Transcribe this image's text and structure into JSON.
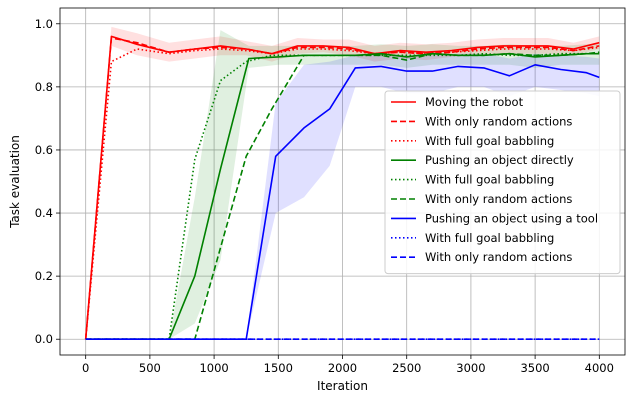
{
  "chart_data": {
    "type": "line",
    "xlabel": "Iteration",
    "ylabel": "Task evaluation",
    "xlim": [
      -200,
      4200
    ],
    "ylim": [
      -0.05,
      1.05
    ],
    "x_ticks": [
      0,
      500,
      1000,
      1500,
      2000,
      2500,
      3000,
      3500,
      4000
    ],
    "y_ticks": [
      0.0,
      0.2,
      0.4,
      0.6,
      0.8,
      1.0
    ],
    "x_tick_labels": [
      "0",
      "500",
      "1000",
      "1500",
      "2000",
      "2500",
      "3000",
      "3500",
      "4000"
    ],
    "y_tick_labels": [
      "0.0",
      "0.2",
      "0.4",
      "0.6",
      "0.8",
      "1.0"
    ],
    "grid": true,
    "legend_position": "right",
    "series": [
      {
        "name": "Moving the robot",
        "color": "#ff0000",
        "style": "solid",
        "x": [
          0,
          200,
          400,
          650,
          850,
          1050,
          1250,
          1450,
          1650,
          1850,
          2050,
          2250,
          2450,
          2650,
          2850,
          3050,
          3250,
          3400,
          3600,
          3800,
          4000
        ],
        "y": [
          0.0,
          0.96,
          0.935,
          0.91,
          0.92,
          0.93,
          0.92,
          0.905,
          0.93,
          0.93,
          0.925,
          0.905,
          0.915,
          0.91,
          0.915,
          0.925,
          0.93,
          0.93,
          0.93,
          0.92,
          0.94
        ],
        "band_lower": [
          0.0,
          0.93,
          0.9,
          0.88,
          0.89,
          0.9,
          0.9,
          0.88,
          0.905,
          0.91,
          0.9,
          0.88,
          0.89,
          0.885,
          0.895,
          0.9,
          0.905,
          0.905,
          0.905,
          0.9,
          0.92
        ],
        "band_upper": [
          0.0,
          0.99,
          0.97,
          0.94,
          0.95,
          0.96,
          0.945,
          0.93,
          0.955,
          0.95,
          0.95,
          0.93,
          0.94,
          0.935,
          0.94,
          0.95,
          0.955,
          0.955,
          0.955,
          0.94,
          0.96
        ]
      },
      {
        "name": "With only random actions",
        "color": "#ff0000",
        "style": "dashed",
        "x": [
          0,
          200,
          400,
          650,
          850,
          1050,
          1250,
          1450,
          1650,
          1850,
          2050,
          2250,
          2450,
          2650,
          2850,
          3050,
          3250,
          3400,
          3600,
          3800,
          4000
        ],
        "y": [
          0.0,
          0.955,
          0.94,
          0.91,
          0.92,
          0.925,
          0.92,
          0.905,
          0.925,
          0.925,
          0.92,
          0.905,
          0.91,
          0.905,
          0.91,
          0.92,
          0.925,
          0.925,
          0.925,
          0.915,
          0.93
        ]
      },
      {
        "name": "With full goal babbling",
        "color": "#ff0000",
        "style": "dotted",
        "x": [
          0,
          200,
          400,
          650,
          850,
          1050,
          1250,
          1450,
          1650,
          1850,
          2050,
          2250,
          2450,
          2650,
          2850,
          3050,
          3250,
          3400,
          3600,
          3800,
          4000
        ],
        "y": [
          0.0,
          0.88,
          0.92,
          0.905,
          0.915,
          0.92,
          0.915,
          0.905,
          0.92,
          0.92,
          0.915,
          0.905,
          0.91,
          0.905,
          0.91,
          0.915,
          0.92,
          0.92,
          0.92,
          0.915,
          0.925
        ]
      },
      {
        "name": "Pushing an object directly",
        "color": "#008000",
        "style": "solid",
        "x": [
          0,
          400,
          650,
          850,
          1050,
          1270,
          1500,
          1700,
          2100,
          2300,
          2500,
          2700,
          2900,
          3100,
          3300,
          3500,
          3700,
          3900,
          4000
        ],
        "y": [
          0.0,
          0.0,
          0.0,
          0.2,
          0.54,
          0.89,
          0.895,
          0.9,
          0.9,
          0.905,
          0.895,
          0.905,
          0.9,
          0.9,
          0.905,
          0.895,
          0.9,
          0.905,
          0.905
        ],
        "band_lower": [
          0.0,
          0.0,
          0.0,
          0.05,
          0.25,
          0.86,
          0.87,
          0.87,
          0.87,
          0.87,
          0.86,
          0.87,
          0.87,
          0.87,
          0.87,
          0.86,
          0.87,
          0.87,
          0.87
        ],
        "band_upper": [
          0.0,
          0.0,
          0.0,
          0.45,
          0.98,
          0.93,
          0.93,
          0.93,
          0.93,
          0.935,
          0.93,
          0.935,
          0.93,
          0.93,
          0.935,
          0.93,
          0.93,
          0.935,
          0.935
        ]
      },
      {
        "name": "With full goal babbling",
        "color": "#008000",
        "style": "dotted",
        "x": [
          0,
          400,
          650,
          850,
          1050,
          1250,
          1450,
          1650,
          1850,
          2050,
          2300,
          2500,
          2700,
          2900,
          3100,
          3300,
          3500,
          3700,
          3900,
          4000
        ],
        "y": [
          0.0,
          0.0,
          0.0,
          0.57,
          0.82,
          0.88,
          0.9,
          0.9,
          0.9,
          0.9,
          0.9,
          0.9,
          0.9,
          0.9,
          0.905,
          0.9,
          0.9,
          0.905,
          0.905,
          0.905
        ]
      },
      {
        "name": "With only random actions",
        "color": "#008000",
        "style": "dashed",
        "x": [
          0,
          400,
          850,
          1250,
          1450,
          1700,
          2100,
          2300,
          2500,
          2700,
          2900,
          3100,
          3300,
          3500,
          3700,
          3900,
          4000
        ],
        "y": [
          0.0,
          0.0,
          0.0,
          0.58,
          0.73,
          0.9,
          0.9,
          0.9,
          0.885,
          0.905,
          0.9,
          0.9,
          0.905,
          0.9,
          0.9,
          0.905,
          0.91
        ]
      },
      {
        "name": "Pushing an object using a tool",
        "color": "#0000ff",
        "style": "solid",
        "x": [
          0,
          1000,
          1250,
          1480,
          1700,
          1900,
          2100,
          2300,
          2500,
          2700,
          2900,
          3100,
          3300,
          3500,
          3700,
          3900,
          4000
        ],
        "y": [
          0.0,
          0.0,
          0.0,
          0.58,
          0.67,
          0.73,
          0.86,
          0.865,
          0.85,
          0.85,
          0.865,
          0.86,
          0.835,
          0.87,
          0.855,
          0.845,
          0.83
        ],
        "band_lower": [
          0.0,
          0.0,
          0.0,
          0.4,
          0.45,
          0.55,
          0.8,
          0.8,
          0.78,
          0.78,
          0.8,
          0.8,
          0.77,
          0.8,
          0.79,
          0.78,
          0.77
        ],
        "band_upper": [
          0.0,
          0.0,
          0.0,
          0.75,
          0.87,
          0.88,
          0.9,
          0.905,
          0.9,
          0.9,
          0.905,
          0.905,
          0.89,
          0.905,
          0.9,
          0.895,
          0.89
        ]
      },
      {
        "name": "With full goal babbling",
        "color": "#0000ff",
        "style": "dotted",
        "x": [
          0,
          4000
        ],
        "y": [
          0.0,
          0.0
        ]
      },
      {
        "name": "With only random actions",
        "color": "#0000ff",
        "style": "dashed",
        "x": [
          0,
          4000
        ],
        "y": [
          0.0,
          0.0
        ]
      }
    ]
  }
}
